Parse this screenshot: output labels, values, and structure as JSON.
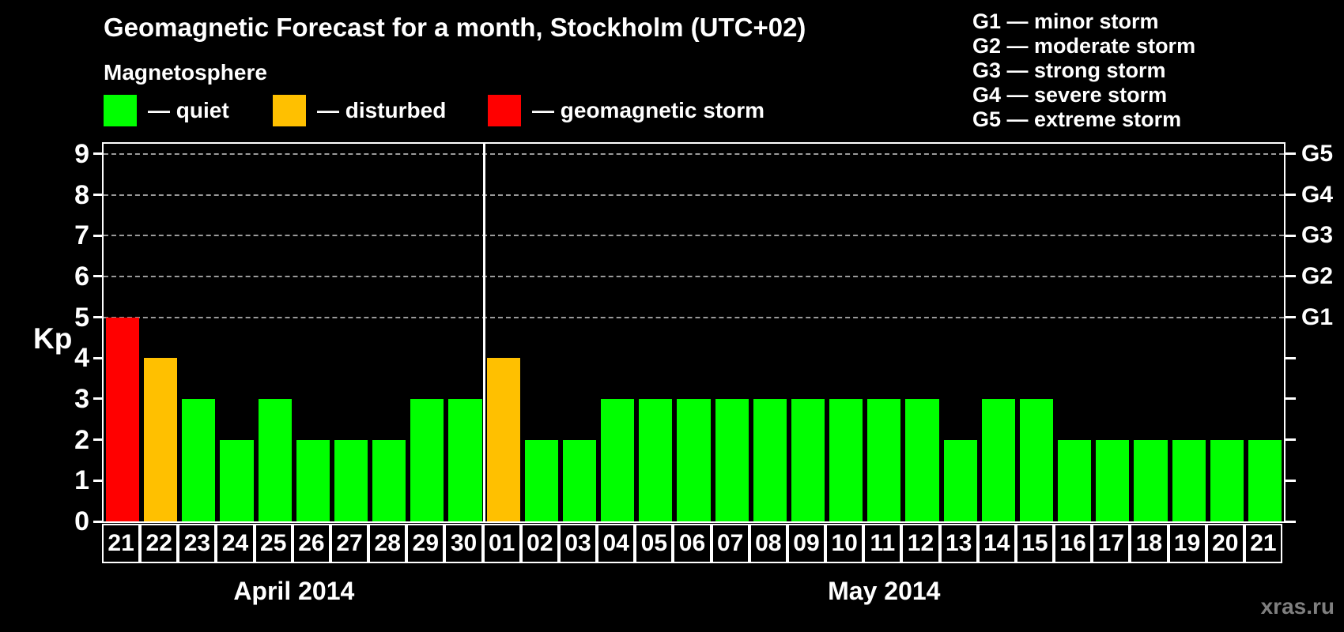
{
  "title": "Geomagnetic Forecast for a month, Stockholm (UTC+02)",
  "subtitle": "Magnetosphere",
  "dash": "—",
  "legend": [
    {
      "key": "quiet",
      "label": "quiet",
      "color": "#00ff00"
    },
    {
      "key": "disturbed",
      "label": "disturbed",
      "color": "#ffc000"
    },
    {
      "key": "storm",
      "label": "geomagnetic storm",
      "color": "#ff0000"
    }
  ],
  "g_legend": [
    {
      "code": "G1",
      "desc": "minor storm"
    },
    {
      "code": "G2",
      "desc": "moderate storm"
    },
    {
      "code": "G3",
      "desc": "strong storm"
    },
    {
      "code": "G4",
      "desc": "severe storm"
    },
    {
      "code": "G5",
      "desc": "extreme storm"
    }
  ],
  "watermark": "xras.ru",
  "chart_data": {
    "type": "bar",
    "title": "Geomagnetic Forecast for a month, Stockholm (UTC+02)",
    "ylabel": "Kp",
    "ylim": [
      0,
      9.25
    ],
    "yticks": [
      0,
      1,
      2,
      3,
      4,
      5,
      6,
      7,
      8,
      9
    ],
    "gridlines_at": [
      5,
      6,
      7,
      8,
      9
    ],
    "grid_style": "dashed",
    "legend_position": "top",
    "right_axis_labels": [
      {
        "level": 5,
        "label": "G1"
      },
      {
        "level": 6,
        "label": "G2"
      },
      {
        "level": 7,
        "label": "G3"
      },
      {
        "level": 8,
        "label": "G4"
      },
      {
        "level": 9,
        "label": "G5"
      }
    ],
    "categories": [
      "21",
      "22",
      "23",
      "24",
      "25",
      "26",
      "27",
      "28",
      "29",
      "30",
      "01",
      "02",
      "03",
      "04",
      "05",
      "06",
      "07",
      "08",
      "09",
      "10",
      "11",
      "12",
      "13",
      "14",
      "15",
      "16",
      "17",
      "18",
      "19",
      "20",
      "21"
    ],
    "values": [
      5,
      4,
      3,
      2,
      3,
      2,
      2,
      2,
      3,
      3,
      4,
      2,
      2,
      3,
      3,
      3,
      3,
      3,
      3,
      3,
      3,
      3,
      2,
      3,
      3,
      2,
      2,
      2,
      2,
      2,
      2
    ],
    "months": [
      {
        "label": "April 2014",
        "start": 0,
        "count": 10
      },
      {
        "label": "May 2014",
        "start": 10,
        "count": 21
      }
    ],
    "colors": {
      "quiet": "#00ff00",
      "disturbed": "#ffc000",
      "storm": "#ff0000"
    },
    "color_rules": {
      "storm_min_kp": 5,
      "disturbed_kp": 4,
      "quiet_max_kp": 3
    }
  }
}
